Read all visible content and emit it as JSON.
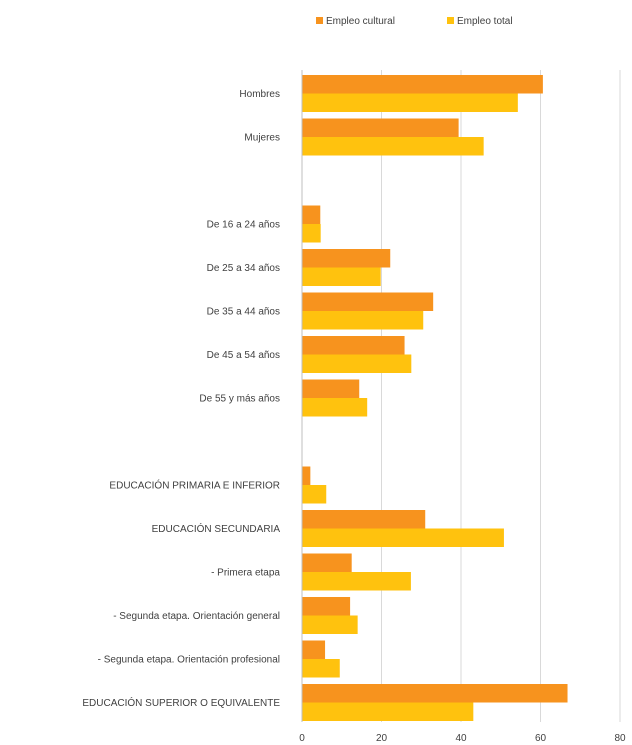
{
  "chart_data": {
    "type": "bar",
    "orientation": "horizontal",
    "title": "",
    "xlabel": "",
    "ylabel": "",
    "xlim": [
      0,
      80
    ],
    "x_ticks": [
      0,
      20,
      40,
      60,
      80
    ],
    "grid": "vertical",
    "legend_position": "top",
    "categories": [
      "Hombres",
      "Mujeres",
      "",
      "De 16 a 24 años",
      "De 25 a 34 años",
      "De 35 a 44 años",
      "De 45 a 54 años",
      "De 55 y más años",
      "",
      "EDUCACIÓN PRIMARIA E INFERIOR",
      "EDUCACIÓN SECUNDARIA",
      "- Primera etapa",
      "- Segunda etapa. Orientación general",
      "- Segunda etapa. Orientación profesional",
      "EDUCACIÓN SUPERIOR O EQUIVALENTE"
    ],
    "series": [
      {
        "name": "Empleo cultural",
        "color": "#F7931E",
        "values": [
          60.6,
          39.4,
          null,
          4.6,
          22.2,
          33.0,
          25.8,
          14.4,
          null,
          2.1,
          31.0,
          12.5,
          12.1,
          5.8,
          66.8
        ]
      },
      {
        "name": "Empleo total",
        "color": "#FFC20E",
        "values": [
          54.3,
          45.7,
          null,
          4.7,
          19.8,
          30.5,
          27.5,
          16.4,
          null,
          6.1,
          50.8,
          27.4,
          14.0,
          9.5,
          43.1
        ]
      }
    ]
  }
}
